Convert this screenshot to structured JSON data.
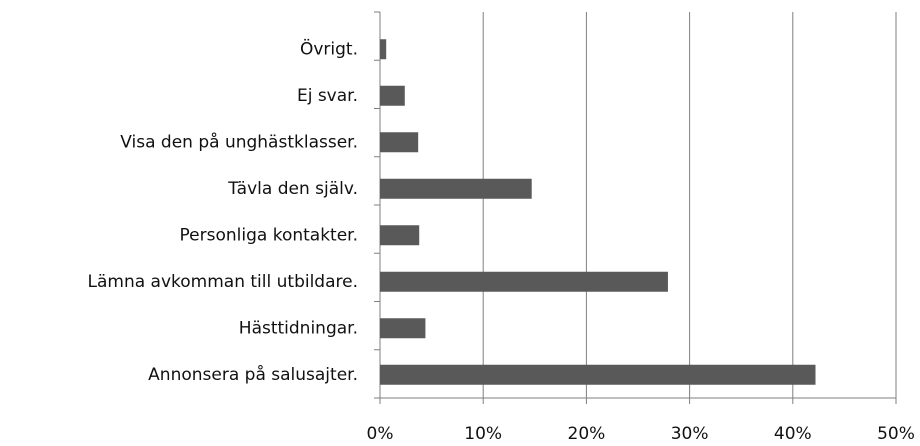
{
  "chart_data": {
    "type": "hbar",
    "categories": [
      "Övrigt.",
      "Ej svar.",
      "Visa den på unghästklasser.",
      "Tävla den själv.",
      "Personliga kontakter.",
      "Lämna avkomman till utbildare.",
      "Hästtidningar.",
      "Annonsera på salusajter."
    ],
    "values": [
      0.6,
      2.4,
      3.7,
      14.7,
      3.8,
      27.9,
      4.4,
      42.2
    ],
    "color": "#595959",
    "xlim": [
      0,
      50
    ],
    "xticks": [
      {
        "value": 0,
        "label": "0%"
      },
      {
        "value": 10,
        "label": "10%"
      },
      {
        "value": 20,
        "label": "20%"
      },
      {
        "value": 30,
        "label": "30%"
      },
      {
        "value": 40,
        "label": "40%"
      },
      {
        "value": 50,
        "label": "50%"
      }
    ],
    "grid": true
  }
}
